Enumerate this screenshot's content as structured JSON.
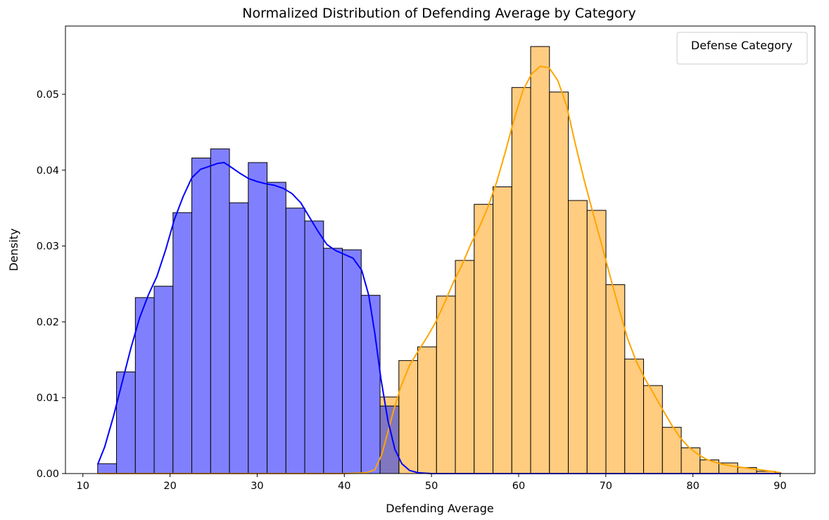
{
  "chart_data": {
    "type": "histogram",
    "title": "Normalized Distribution of Defending Average by Category",
    "xlabel": "Defending Average",
    "ylabel": "Density",
    "xlim": [
      8,
      94
    ],
    "ylim": [
      0,
      0.059
    ],
    "xticks": [
      10,
      20,
      30,
      40,
      50,
      60,
      70,
      80,
      90
    ],
    "xtick_labels": [
      "10",
      "20",
      "30",
      "40",
      "50",
      "60",
      "70",
      "80",
      "90"
    ],
    "yticks": [
      0.0,
      0.01,
      0.02,
      0.03,
      0.04,
      0.05
    ],
    "ytick_labels": [
      "0.00",
      "0.01",
      "0.02",
      "0.03",
      "0.04",
      "0.05"
    ],
    "grid": false,
    "legend": {
      "title": "Defense Category",
      "placement": "top-right",
      "entries": []
    },
    "colors": {
      "blue_fill": "#8080ff",
      "blue_line": "#0000ff",
      "orange_fill": "#ffcc80",
      "orange_line": "#ffa500",
      "overlap_fill": "#8077c0"
    },
    "series": [
      {
        "color": "blue",
        "bins": [
          [
            11.7,
            13.86,
            0.0013
          ],
          [
            13.86,
            16.02,
            0.0134
          ],
          [
            16.02,
            18.18,
            0.0232
          ],
          [
            18.18,
            20.34,
            0.0247
          ],
          [
            20.34,
            22.5,
            0.0344
          ],
          [
            22.5,
            24.66,
            0.0416
          ],
          [
            24.66,
            26.82,
            0.0428
          ],
          [
            26.82,
            28.98,
            0.0357
          ],
          [
            28.98,
            31.14,
            0.041
          ],
          [
            31.14,
            33.3,
            0.0384
          ],
          [
            33.3,
            35.46,
            0.035
          ],
          [
            35.46,
            37.62,
            0.0333
          ],
          [
            37.62,
            39.78,
            0.0297
          ],
          [
            39.78,
            41.94,
            0.0295
          ],
          [
            41.94,
            44.1,
            0.0235
          ],
          [
            44.1,
            46.26,
            0.0089
          ]
        ],
        "kde": [
          [
            11.7,
            0.0012
          ],
          [
            12.5,
            0.0035
          ],
          [
            13.5,
            0.0075
          ],
          [
            14.5,
            0.012
          ],
          [
            15.5,
            0.0165
          ],
          [
            16.5,
            0.0205
          ],
          [
            17.5,
            0.0235
          ],
          [
            18.5,
            0.026
          ],
          [
            19.5,
            0.0295
          ],
          [
            20.5,
            0.0335
          ],
          [
            21.5,
            0.0365
          ],
          [
            22.5,
            0.039
          ],
          [
            23.5,
            0.0401
          ],
          [
            24.5,
            0.0405
          ],
          [
            25.5,
            0.0409
          ],
          [
            26.2,
            0.041
          ],
          [
            27,
            0.0404
          ],
          [
            28,
            0.0396
          ],
          [
            29,
            0.0389
          ],
          [
            30,
            0.0385
          ],
          [
            31,
            0.0382
          ],
          [
            32,
            0.038
          ],
          [
            33,
            0.0376
          ],
          [
            34,
            0.0369
          ],
          [
            35,
            0.0357
          ],
          [
            36,
            0.0338
          ],
          [
            37,
            0.0319
          ],
          [
            38,
            0.0302
          ],
          [
            39,
            0.0294
          ],
          [
            40,
            0.0289
          ],
          [
            41,
            0.0284
          ],
          [
            42,
            0.0268
          ],
          [
            42.8,
            0.0235
          ],
          [
            43.5,
            0.0185
          ],
          [
            44.2,
            0.0125
          ],
          [
            45,
            0.007
          ],
          [
            45.8,
            0.0032
          ],
          [
            46.6,
            0.0013
          ],
          [
            47.5,
            0.0004
          ],
          [
            48.5,
            0.0001
          ],
          [
            50,
            0.0
          ],
          [
            60,
            0.0
          ],
          [
            70,
            0.0
          ],
          [
            80,
            0.0
          ],
          [
            90.1,
            0.0
          ]
        ]
      },
      {
        "color": "orange",
        "bins": [
          [
            44.1,
            46.26,
            0.0101
          ],
          [
            46.26,
            48.42,
            0.0149
          ],
          [
            48.42,
            50.58,
            0.0167
          ],
          [
            50.58,
            52.74,
            0.0234
          ],
          [
            52.74,
            54.9,
            0.0281
          ],
          [
            54.9,
            57.06,
            0.0355
          ],
          [
            57.06,
            59.22,
            0.0378
          ],
          [
            59.22,
            61.38,
            0.0509
          ],
          [
            61.38,
            63.54,
            0.0563
          ],
          [
            63.54,
            65.7,
            0.0503
          ],
          [
            65.7,
            67.86,
            0.036
          ],
          [
            67.86,
            70.02,
            0.0347
          ],
          [
            70.02,
            72.18,
            0.0249
          ],
          [
            72.18,
            74.34,
            0.0151
          ],
          [
            74.34,
            76.5,
            0.0116
          ],
          [
            76.5,
            78.66,
            0.0061
          ],
          [
            78.66,
            80.82,
            0.0034
          ],
          [
            80.82,
            82.98,
            0.0018
          ],
          [
            82.98,
            85.14,
            0.0014
          ],
          [
            85.14,
            87.3,
            0.0008
          ],
          [
            87.3,
            89.46,
            0.0003
          ],
          [
            89.46,
            90.1,
            0.0001
          ]
        ],
        "kde": [
          [
            11.7,
            0.0
          ],
          [
            20,
            0.0
          ],
          [
            30,
            0.0
          ],
          [
            40,
            0.0
          ],
          [
            42.5,
            0.0001
          ],
          [
            43.5,
            0.0005
          ],
          [
            44.3,
            0.0025
          ],
          [
            45,
            0.0055
          ],
          [
            45.7,
            0.0085
          ],
          [
            46.5,
            0.0115
          ],
          [
            47.5,
            0.0143
          ],
          [
            48.5,
            0.0162
          ],
          [
            49.5,
            0.018
          ],
          [
            50.5,
            0.02
          ],
          [
            51.5,
            0.0225
          ],
          [
            52.5,
            0.0252
          ],
          [
            53.5,
            0.0275
          ],
          [
            54.5,
            0.0302
          ],
          [
            55.5,
            0.0325
          ],
          [
            56.5,
            0.0352
          ],
          [
            57.5,
            0.0385
          ],
          [
            58.5,
            0.0425
          ],
          [
            59.5,
            0.0468
          ],
          [
            60.5,
            0.0505
          ],
          [
            61.5,
            0.0527
          ],
          [
            62.5,
            0.0537
          ],
          [
            63.5,
            0.0535
          ],
          [
            64.5,
            0.0518
          ],
          [
            65.5,
            0.0485
          ],
          [
            66.5,
            0.0435
          ],
          [
            67.5,
            0.0388
          ],
          [
            68.5,
            0.0345
          ],
          [
            69.5,
            0.0303
          ],
          [
            70.5,
            0.026
          ],
          [
            71.5,
            0.0218
          ],
          [
            72.5,
            0.0178
          ],
          [
            73.5,
            0.0148
          ],
          [
            74.5,
            0.0125
          ],
          [
            75.5,
            0.0105
          ],
          [
            76.5,
            0.0085
          ],
          [
            77.5,
            0.0065
          ],
          [
            78.5,
            0.0048
          ],
          [
            79.5,
            0.0035
          ],
          [
            80.5,
            0.0026
          ],
          [
            81.5,
            0.0019
          ],
          [
            82.5,
            0.0015
          ],
          [
            83.5,
            0.0012
          ],
          [
            85,
            0.0009
          ],
          [
            87,
            0.0006
          ],
          [
            89,
            0.0003
          ],
          [
            90.1,
            0.0001
          ]
        ]
      }
    ]
  }
}
